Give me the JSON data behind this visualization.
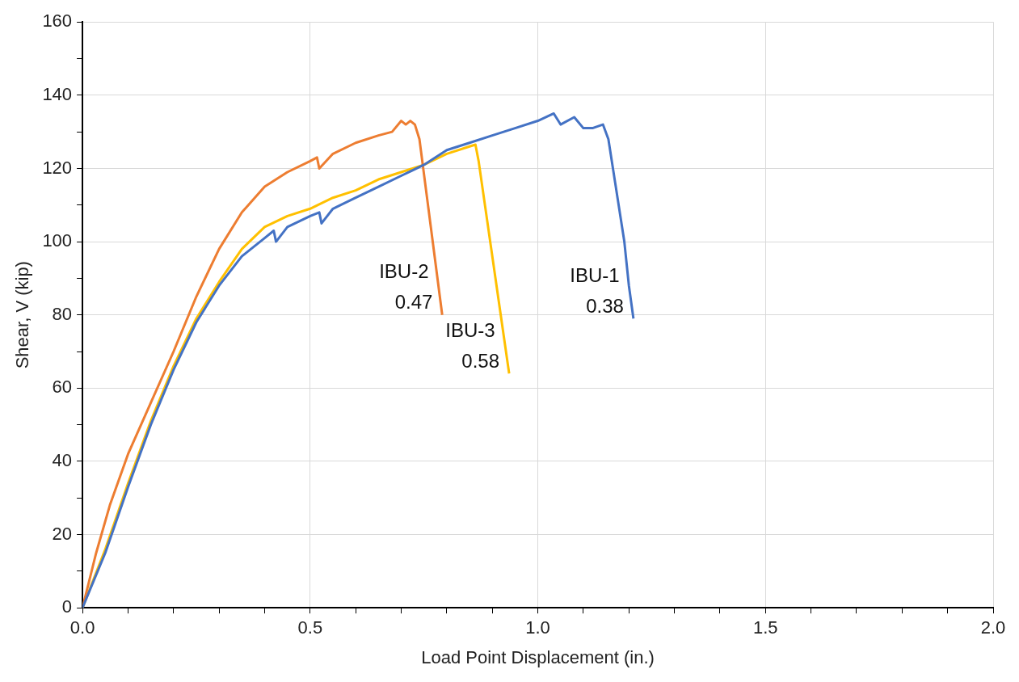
{
  "chart_data": {
    "type": "line",
    "xlabel": "Load Point Displacement (in.)",
    "ylabel": "Shear, V (kip)",
    "xlim": [
      0,
      2
    ],
    "ylim": [
      0,
      160
    ],
    "xticks": [
      {
        "value": 0,
        "label": "0.0"
      },
      {
        "value": 0.1,
        "label": null
      },
      {
        "value": 0.2,
        "label": null
      },
      {
        "value": 0.3,
        "label": null
      },
      {
        "value": 0.4,
        "label": null
      },
      {
        "value": 0.5,
        "label": "0.5"
      },
      {
        "value": 0.6,
        "label": null
      },
      {
        "value": 0.7,
        "label": null
      },
      {
        "value": 0.8,
        "label": null
      },
      {
        "value": 0.9,
        "label": null
      },
      {
        "value": 1,
        "label": "1.0"
      },
      {
        "value": 1.1,
        "label": null
      },
      {
        "value": 1.2,
        "label": null
      },
      {
        "value": 1.3,
        "label": null
      },
      {
        "value": 1.4,
        "label": null
      },
      {
        "value": 1.5,
        "label": "1.5"
      },
      {
        "value": 1.6,
        "label": null
      },
      {
        "value": 1.7,
        "label": null
      },
      {
        "value": 1.8,
        "label": null
      },
      {
        "value": 1.9,
        "label": null
      },
      {
        "value": 2,
        "label": "2.0"
      }
    ],
    "yticks": [
      0,
      {
        "value": 10,
        "label": null
      },
      20,
      {
        "value": 30,
        "label": null
      },
      40,
      {
        "value": 50,
        "label": null
      },
      60,
      {
        "value": 70,
        "label": null
      },
      80,
      {
        "value": 90,
        "label": null
      },
      100,
      {
        "value": 110,
        "label": null
      },
      120,
      {
        "value": 130,
        "label": null
      },
      140,
      {
        "value": 150,
        "label": null
      },
      160
    ],
    "grid": true,
    "legend": false,
    "marker": "none",
    "line_style": "solid",
    "series": [
      {
        "name": "IBU-1",
        "color": "#4472c4",
        "x": [
          0,
          0.05,
          0.1,
          0.15,
          0.2,
          0.25,
          0.3,
          0.35,
          0.4,
          0.42,
          0.425,
          0.45,
          0.5,
          0.52,
          0.525,
          0.55,
          0.6,
          0.65,
          0.7,
          0.75,
          0.8,
          0.85,
          0.9,
          0.95,
          1.0,
          1.035,
          1.05,
          1.08,
          1.1,
          1.12,
          1.143,
          1.155,
          1.19,
          1.2,
          1.21
        ],
        "values": [
          0,
          15,
          33,
          50,
          65,
          78,
          88,
          96,
          101,
          103,
          100,
          104,
          107,
          108,
          105,
          109,
          112,
          115,
          118,
          121,
          125,
          127,
          129,
          131,
          133,
          135,
          132,
          134,
          131,
          131,
          132,
          128,
          100,
          88,
          79
        ]
      },
      {
        "name": "IBU-2",
        "color": "#ed7d31",
        "x": [
          0,
          0.03,
          0.06,
          0.1,
          0.15,
          0.2,
          0.25,
          0.3,
          0.35,
          0.4,
          0.45,
          0.5,
          0.515,
          0.52,
          0.55,
          0.6,
          0.65,
          0.68,
          0.7,
          0.71,
          0.72,
          0.73,
          0.74,
          0.79
        ],
        "values": [
          0,
          15,
          28,
          42,
          56,
          70,
          85,
          98,
          108,
          115,
          119,
          122,
          123,
          120,
          124,
          127,
          129,
          130,
          133,
          132,
          133,
          132,
          128,
          80
        ]
      },
      {
        "name": "IBU-3",
        "color": "#ffc000",
        "x": [
          0,
          0.05,
          0.1,
          0.15,
          0.2,
          0.25,
          0.3,
          0.35,
          0.4,
          0.45,
          0.5,
          0.55,
          0.6,
          0.65,
          0.7,
          0.75,
          0.8,
          0.85,
          0.863,
          0.87,
          0.937
        ],
        "values": [
          0,
          16,
          34,
          51,
          66,
          79,
          89,
          98,
          104,
          107,
          109,
          112,
          114,
          117,
          119,
          121,
          124,
          126,
          126.5,
          122,
          64
        ]
      }
    ],
    "annotations": [
      "0.38",
      "0.47",
      "0.58"
    ]
  }
}
